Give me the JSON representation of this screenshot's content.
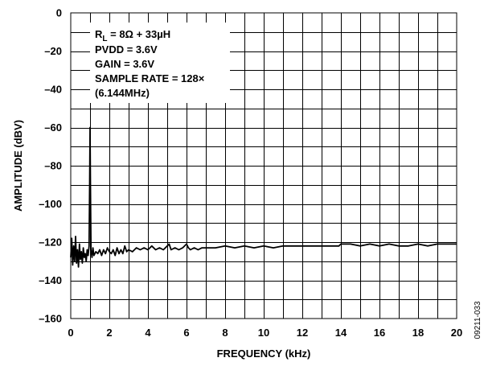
{
  "chart_data": {
    "type": "line",
    "title": "",
    "xlabel": "FREQUENCY (kHz)",
    "ylabel": "AMPLITUDE (dBV)",
    "xlim": [
      0,
      20
    ],
    "ylim": [
      -160,
      0
    ],
    "x_ticks": [
      0,
      2,
      4,
      6,
      8,
      10,
      12,
      14,
      16,
      18,
      20
    ],
    "x_tick_labels": [
      "0",
      "2",
      "4",
      "6",
      "8",
      "10",
      "12",
      "14",
      "16",
      "18",
      "20"
    ],
    "y_ticks": [
      0,
      -20,
      -40,
      -60,
      -80,
      -100,
      -120,
      -140,
      -160
    ],
    "y_tick_labels": [
      "0",
      "–20",
      "–40",
      "–60",
      "–80",
      "–100",
      "–120",
      "–140",
      "–160"
    ],
    "grid": {
      "x_step": 1,
      "y_step": 10
    },
    "annotation": {
      "rl_prefix": "R",
      "rl_subscript": "L",
      "rl_value": " = 8Ω + 33µH",
      "lines": [
        "PVDD = 3.6V",
        "GAIN = 3.6V",
        "SAMPLE RATE = 128×",
        "(6.144MHz)"
      ]
    },
    "figure_id": "09211-033",
    "series": [
      {
        "x": [
          0.0,
          0.05,
          0.1,
          0.15,
          0.2,
          0.25,
          0.3,
          0.35,
          0.4,
          0.45,
          0.5,
          0.55,
          0.6,
          0.65,
          0.7,
          0.75,
          0.8,
          0.85,
          0.9,
          0.95,
          0.98,
          1.0,
          1.02,
          1.05,
          1.1,
          1.15,
          1.2,
          1.3,
          1.4,
          1.5,
          1.6,
          1.7,
          1.8,
          1.9,
          2.0,
          2.1,
          2.2,
          2.3,
          2.4,
          2.5,
          2.6,
          2.7,
          2.8,
          2.9,
          3.0,
          3.2,
          3.4,
          3.6,
          3.8,
          4.0,
          4.2,
          4.4,
          4.6,
          4.8,
          5.0,
          5.1,
          5.2,
          5.4,
          5.6,
          5.8,
          6.0,
          6.1,
          6.2,
          6.4,
          6.6,
          6.8,
          7.0,
          7.5,
          8.0,
          8.5,
          9.0,
          9.5,
          10.0,
          10.5,
          11.0,
          11.5,
          12.0,
          12.5,
          13.0,
          13.5,
          13.9,
          14.0,
          14.5,
          15.0,
          15.5,
          16.0,
          16.5,
          17.0,
          17.5,
          18.0,
          18.5,
          19.0,
          19.5,
          20.0
        ],
        "y": [
          -128,
          -118,
          -132,
          -122,
          -130,
          -117,
          -131,
          -124,
          -133,
          -121,
          -129,
          -125,
          -131,
          -123,
          -128,
          -126,
          -130,
          -124,
          -127,
          -122,
          -90,
          -60,
          -90,
          -124,
          -128,
          -123,
          -127,
          -125,
          -126,
          -124,
          -127,
          -124,
          -126,
          -123,
          -125,
          -126,
          -124,
          -127,
          -123,
          -126,
          -124,
          -126,
          -122,
          -125,
          -124,
          -125,
          -123,
          -124,
          -123,
          -124,
          -122,
          -124,
          -123,
          -124,
          -122,
          -121,
          -124,
          -123,
          -124,
          -123,
          -121,
          -123,
          -124,
          -123,
          -124,
          -123,
          -123,
          -123,
          -122,
          -123,
          -122,
          -123,
          -122,
          -123,
          -122,
          -122,
          -122,
          -122,
          -122,
          -122,
          -122,
          -121,
          -121,
          -122,
          -121,
          -122,
          -121,
          -122,
          -122,
          -121,
          -122,
          -121,
          -121,
          -121
        ]
      }
    ]
  }
}
